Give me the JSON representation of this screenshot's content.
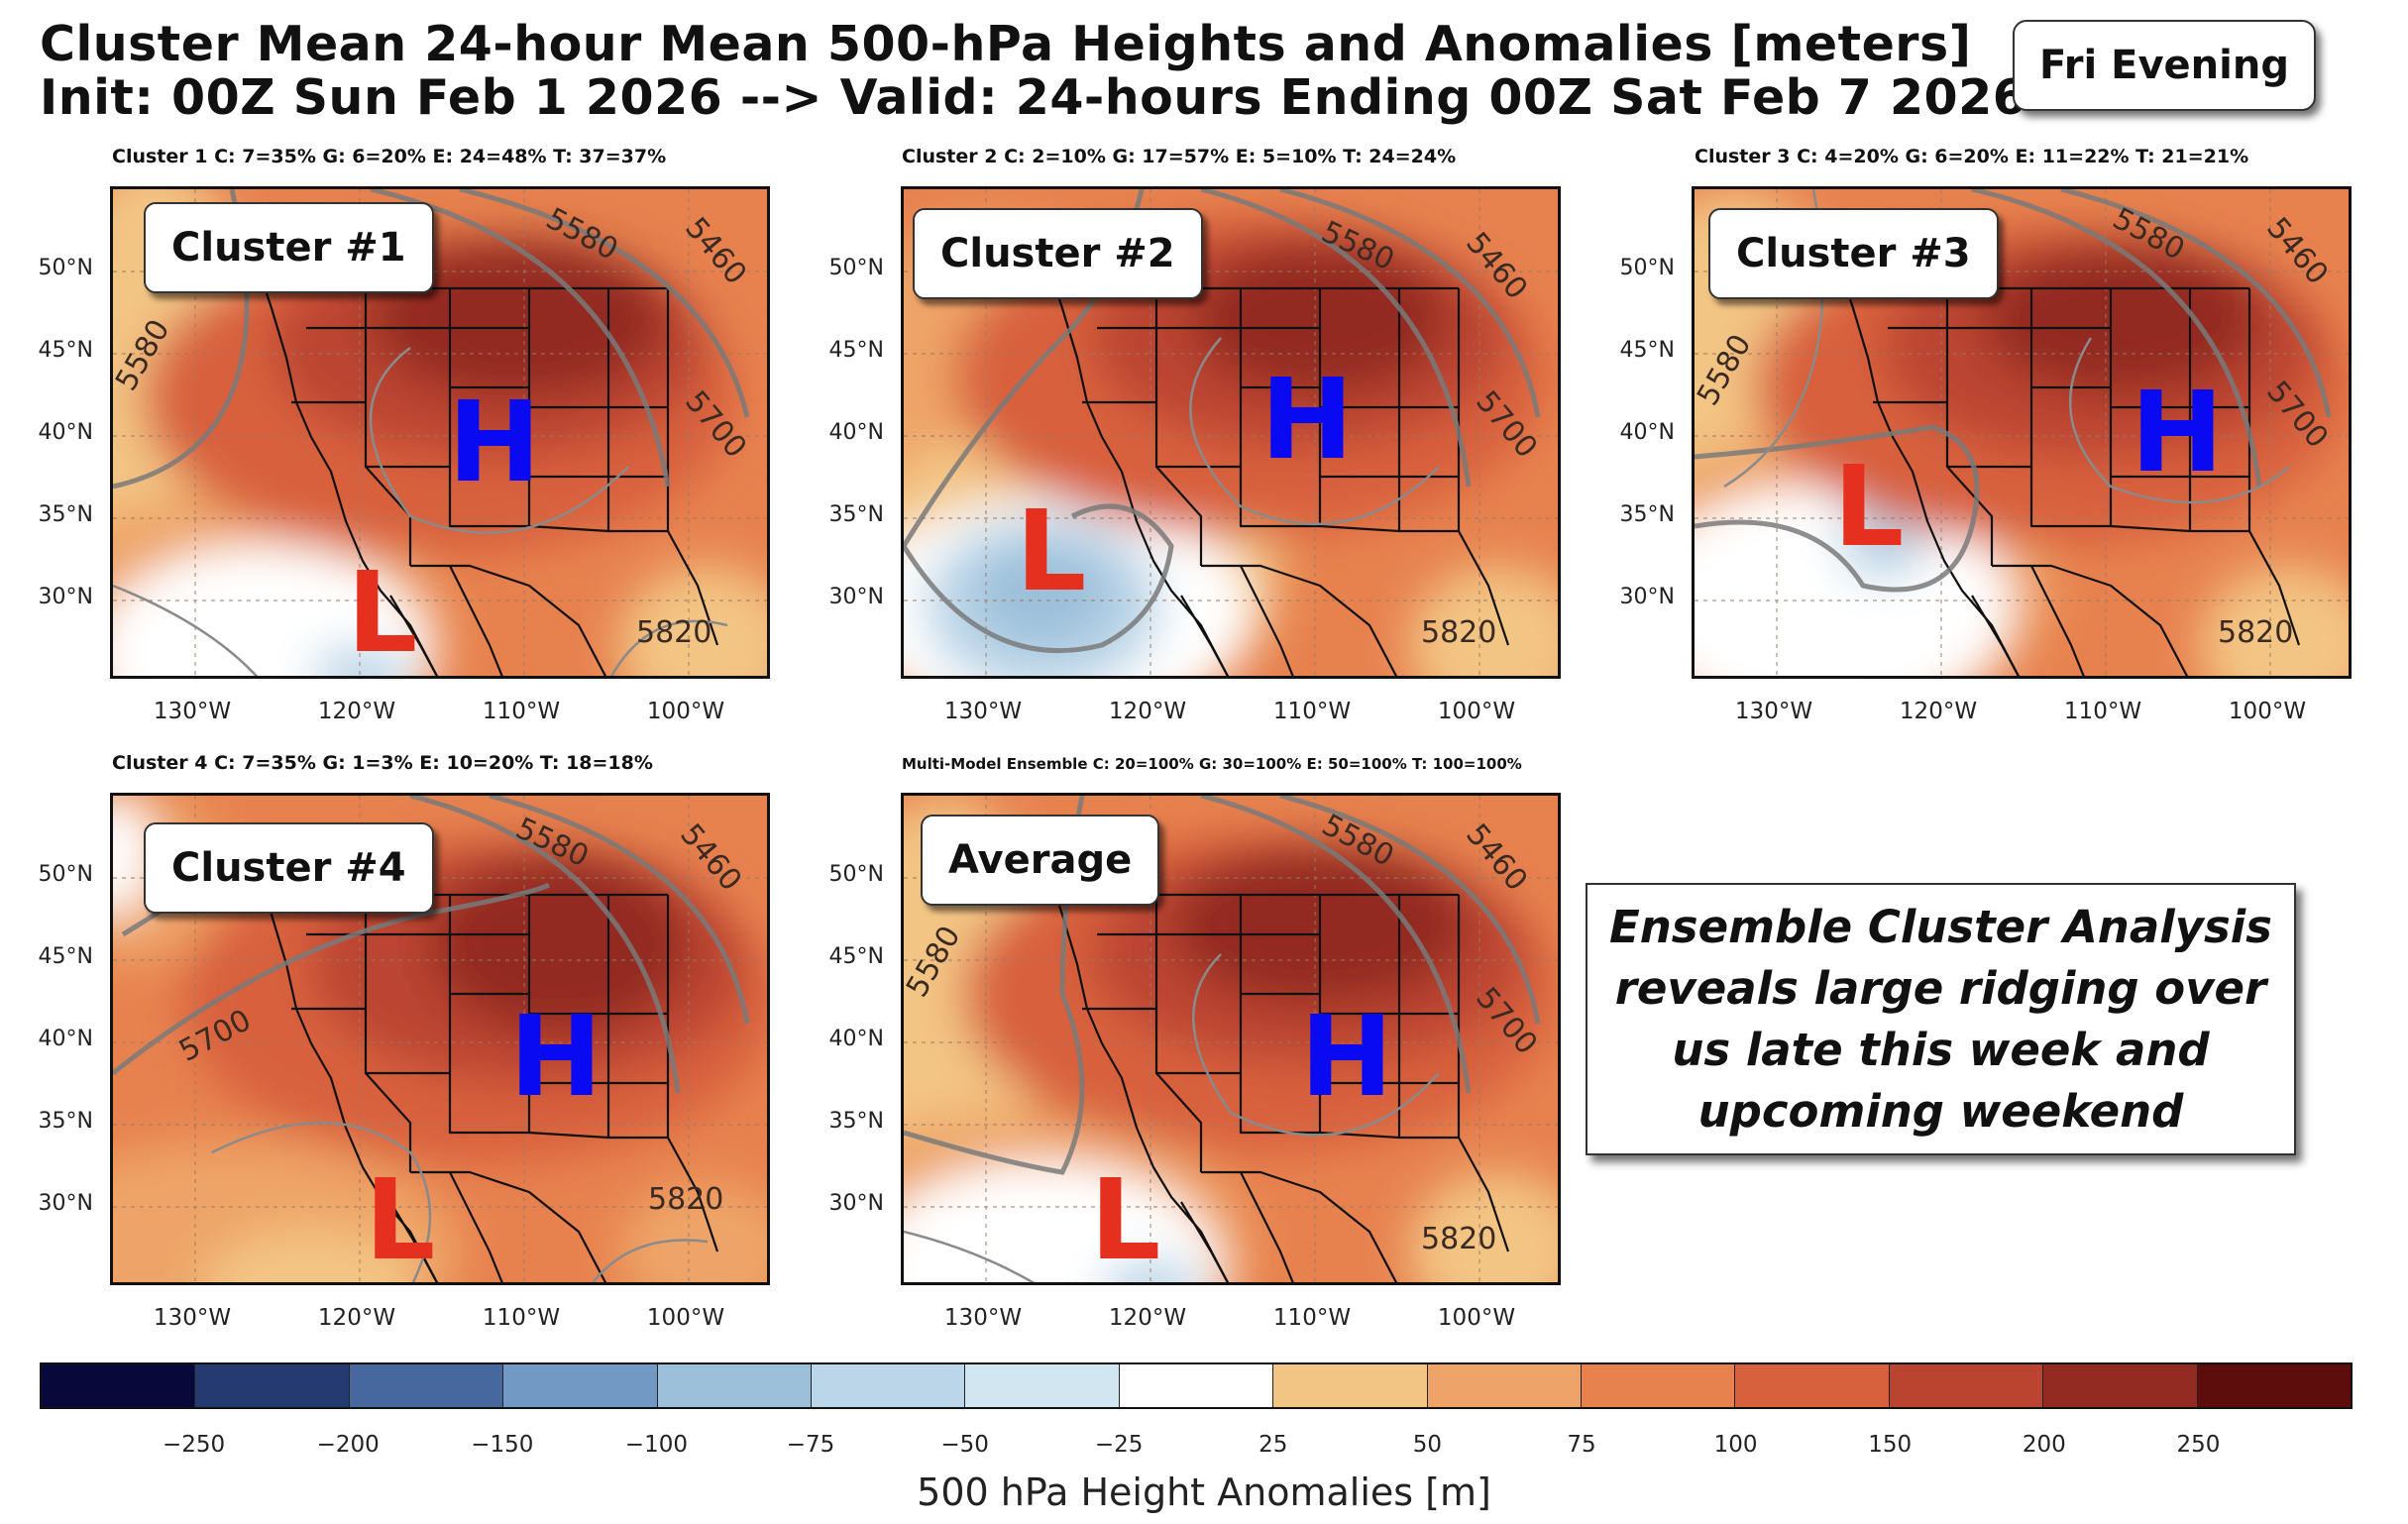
{
  "header": {
    "title_line1": "Cluster Mean 24-hour Mean 500-hPa Heights and Anomalies [meters]",
    "title_line2": "Init: 00Z Sun Feb 1 2026 --> Valid: 24-hours Ending 00Z Sat Feb 7 2026",
    "badge": "Fri Evening"
  },
  "panels": [
    {
      "caption": "Cluster 1     C: 7=35%    G: 6=20%    E: 24=48%    T: 37=37%",
      "label": "Cluster #1",
      "high": "H",
      "low": "L",
      "contours": [
        "5580",
        "5460",
        "5700",
        "5820",
        "5580"
      ]
    },
    {
      "caption": "Cluster 2     C: 2=10%    G: 17=57%    E: 5=10%    T: 24=24%",
      "label": "Cluster #2",
      "high": "H",
      "low": "L",
      "contours": [
        "5580",
        "5460",
        "5700",
        "5820"
      ]
    },
    {
      "caption": "Cluster 3     C: 4=20%    G: 6=20%    E: 11=22%    T: 21=21%",
      "label": "Cluster #3",
      "high": "H",
      "low": "L",
      "contours": [
        "5580",
        "5460",
        "5700",
        "5820",
        "5580"
      ]
    },
    {
      "caption": "Cluster 4     C: 7=35%    G: 1=3%    E: 10=20%    T: 18=18%",
      "label": "Cluster #4",
      "high": "H",
      "low": "L",
      "contours": [
        "5580",
        "5460",
        "5700",
        "5820"
      ]
    },
    {
      "caption": "Multi-Model Ensemble  C: 20=100%  G: 30=100%  E: 50=100%  T: 100=100%",
      "label": "Average",
      "high": "H",
      "low": "L",
      "contours": [
        "5580",
        "5460",
        "5700",
        "5820",
        "5580"
      ]
    }
  ],
  "axes": {
    "lat_labels": [
      "50°N",
      "45°N",
      "40°N",
      "35°N",
      "30°N"
    ],
    "lon_labels": [
      "130°W",
      "120°W",
      "110°W",
      "100°W"
    ]
  },
  "note": "Ensemble Cluster Analysis reveals large ridging over us late this week and upcoming weekend",
  "colorbar": {
    "label": "500 hPa Height Anomalies [m]",
    "ticks": [
      "−250",
      "−200",
      "−150",
      "−100",
      "−75",
      "−50",
      "−25",
      "25",
      "50",
      "75",
      "100",
      "150",
      "200",
      "250"
    ],
    "colors": [
      "#08083a",
      "#263a72",
      "#47679f",
      "#7199c4",
      "#9cbfda",
      "#bbd6e8",
      "#d2e6f1",
      "#ffffff",
      "#f3c584",
      "#eea468",
      "#e7824f",
      "#d8613d",
      "#bb4430",
      "#932b22",
      "#5e0d0d"
    ]
  }
}
